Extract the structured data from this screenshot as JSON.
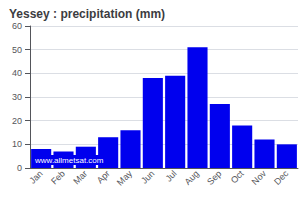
{
  "chart_data": {
    "type": "bar",
    "title": "Yessey : precipitation (mm)",
    "categories": [
      "Jan",
      "Feb",
      "Mar",
      "Apr",
      "May",
      "Jun",
      "Jul",
      "Aug",
      "Sep",
      "Oct",
      "Nov",
      "Dec"
    ],
    "values": [
      8,
      7,
      9,
      13,
      16,
      38,
      39,
      51,
      27,
      18,
      12,
      10
    ],
    "color": "#0000ee",
    "ylim": [
      0,
      60
    ],
    "yticks": [
      0,
      10,
      20,
      30,
      40,
      50,
      60
    ],
    "grid": true,
    "annotations": [
      "www.allmetsat.com"
    ]
  }
}
